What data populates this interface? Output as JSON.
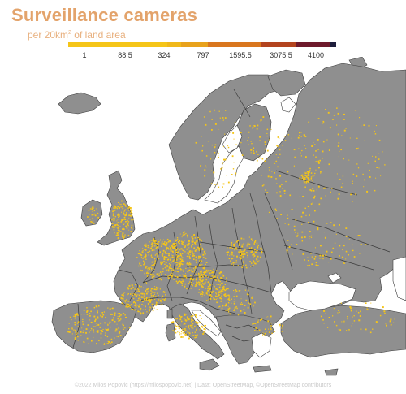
{
  "title": "Surveillance cameras",
  "subtitle": {
    "prefix": "per 20km",
    "superscript": "2",
    "suffix": " of land area"
  },
  "legend": {
    "ticks": [
      "1",
      "88.5",
      "324",
      "797",
      "1595.5",
      "3075.5",
      "4100"
    ],
    "colors": [
      "#f5c518",
      "#f0b81a",
      "#e8a21c",
      "#d9761e",
      "#b3441f",
      "#6e1a2c",
      "#1e1e3c"
    ]
  },
  "map": {
    "land_color": "#8f8f8f",
    "border_color": "#3c3c3c",
    "dot_color": "#f5c518",
    "sea_color": "#ffffff"
  },
  "credit": "©2022 Milos Popovic (https://milospopovic.net) | Data: OpenStreetMap, ©OpenStreetMap contributors"
}
